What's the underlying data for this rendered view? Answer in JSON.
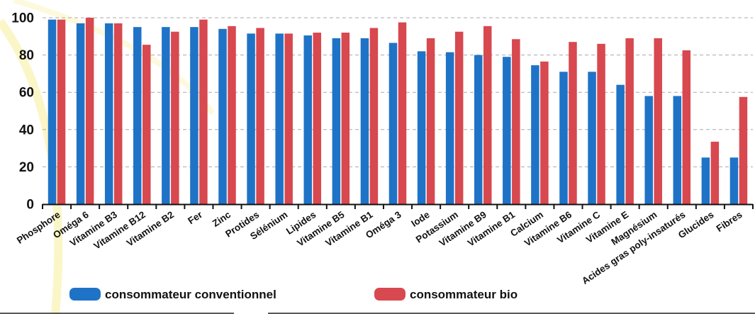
{
  "chart_data": {
    "type": "bar",
    "categories": [
      "Phosphore",
      "Oméga 6",
      "Vitamine B3",
      "Vitamine B12",
      "Vitamine B2",
      "Fer",
      "Zinc",
      "Protides",
      "Sélénium",
      "Lipides",
      "Vitamine B5",
      "Vitamine B1",
      "Oméga 3",
      "Iode",
      "Potassium",
      "Vitamine B9",
      "Vitamine B1",
      "Calcium",
      "Vitamine B6",
      "Vitamine C",
      "Vitamine E",
      "Magnésium",
      "Acides gras poly-insaturés",
      "Glucides",
      "Fibres"
    ],
    "series": [
      {
        "name": "consommateur conventionnel",
        "color": "#1f73c7",
        "values": [
          99,
          97,
          97,
          95,
          95,
          95,
          94,
          91.5,
          91.5,
          90.5,
          89,
          89,
          86.5,
          82,
          81.5,
          80,
          79,
          74.5,
          71,
          71,
          64,
          58,
          58,
          25,
          25
        ]
      },
      {
        "name": "consommateur bio",
        "color": "#d8484f",
        "values": [
          99,
          100,
          97,
          85.5,
          92.5,
          99,
          95.5,
          94.5,
          91.5,
          92,
          92,
          94.5,
          97.5,
          89,
          92.5,
          95.5,
          88.5,
          76.5,
          87,
          86,
          89,
          89,
          82.5,
          33.5,
          57.5
        ]
      }
    ],
    "yticks": [
      0,
      20,
      40,
      60,
      80,
      100
    ],
    "ylim": [
      0,
      100
    ],
    "grid": true,
    "legend_position": "bottom",
    "title": "",
    "xlabel": "",
    "ylabel": ""
  }
}
